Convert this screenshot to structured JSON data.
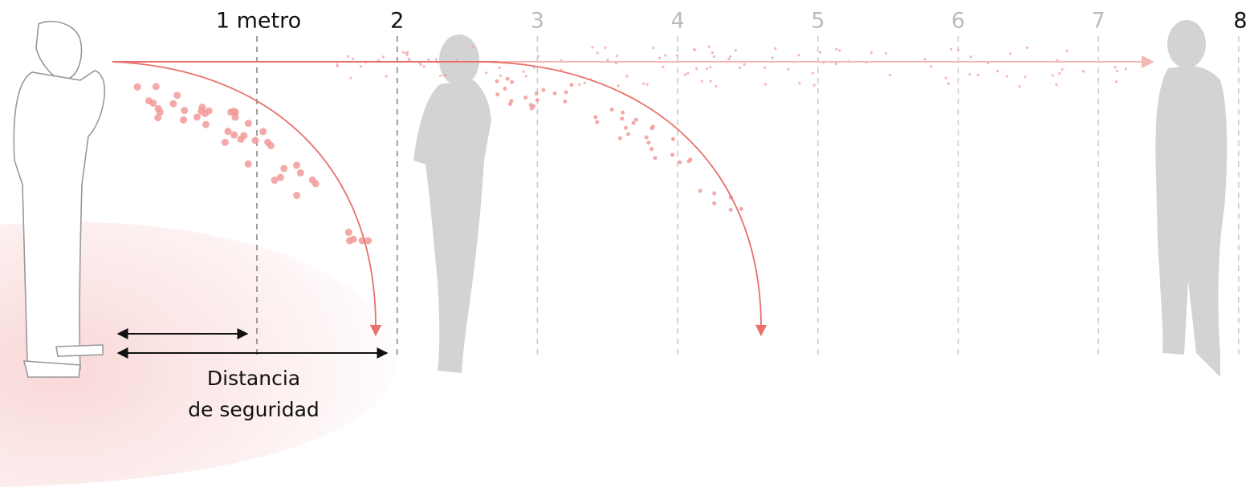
{
  "markers": [
    {
      "label": "1 metro"
    },
    {
      "label": "2"
    },
    {
      "label": "3"
    },
    {
      "label": "4"
    },
    {
      "label": "5"
    },
    {
      "label": "6"
    },
    {
      "label": "7"
    },
    {
      "label": "8"
    }
  ],
  "caption": [
    "Distancia",
    "de seguridad"
  ]
}
